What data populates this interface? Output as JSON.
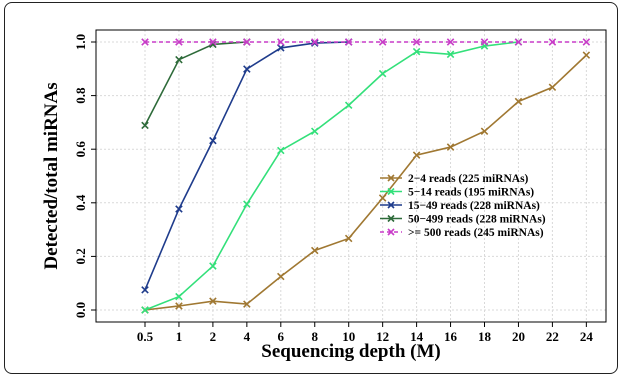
{
  "chart_data": {
    "type": "line",
    "xlabel": "Sequencing depth (M)",
    "ylabel": "Detected/total miRNAs",
    "x_ticks": [
      "0.5",
      "1",
      "2",
      "4",
      "6",
      "8",
      "10",
      "12",
      "14",
      "16",
      "18",
      "20",
      "22",
      "24"
    ],
    "y_ticks": [
      "0.0",
      "0.2",
      "0.4",
      "0.6",
      "0.8",
      "1.0"
    ],
    "ylim": [
      0,
      1
    ],
    "grid": true,
    "legend_position": "center-right",
    "series": [
      {
        "name": "2−4 reads (225 miRNAs)",
        "color": "#a07832",
        "marker": "x",
        "dashed": false,
        "x": [
          "0.5",
          "1",
          "2",
          "4",
          "6",
          "8",
          "10",
          "12",
          "14",
          "16",
          "18",
          "20",
          "22",
          "24"
        ],
        "values": [
          0.0,
          0.015,
          0.033,
          0.022,
          0.125,
          0.222,
          0.267,
          0.418,
          0.578,
          0.608,
          0.667,
          0.778,
          0.831,
          0.951
        ]
      },
      {
        "name": "5−14 reads (195 miRNAs)",
        "color": "#33e07a",
        "marker": "x",
        "dashed": false,
        "x": [
          "0.5",
          "1",
          "2",
          "4",
          "6",
          "8",
          "10",
          "12",
          "14",
          "16",
          "18",
          "20"
        ],
        "values": [
          0.0,
          0.05,
          0.164,
          0.395,
          0.595,
          0.667,
          0.764,
          0.882,
          0.964,
          0.954,
          0.985,
          1.0
        ]
      },
      {
        "name": "15−49 reads (228 miRNAs)",
        "color": "#1f3c8c",
        "marker": "x",
        "dashed": false,
        "x": [
          "0.5",
          "1",
          "2",
          "4",
          "6",
          "8",
          "10"
        ],
        "values": [
          0.075,
          0.377,
          0.632,
          0.899,
          0.978,
          0.996,
          1.0
        ]
      },
      {
        "name": "50−499 reads (228 miRNAs)",
        "color": "#2e6b3a",
        "marker": "x",
        "dashed": false,
        "x": [
          "0.5",
          "1",
          "2",
          "4"
        ],
        "values": [
          0.689,
          0.934,
          0.991,
          1.0
        ]
      },
      {
        "name": ">= 500 reads (245 miRNAs)",
        "color": "#c83cc8",
        "marker": "x",
        "dashed": true,
        "x": [
          "0.5",
          "1",
          "2",
          "4",
          "6",
          "8",
          "10",
          "12",
          "14",
          "16",
          "18",
          "20",
          "22",
          "24"
        ],
        "values": [
          1.0,
          1.0,
          1.0,
          1.0,
          1.0,
          1.0,
          1.0,
          1.0,
          1.0,
          1.0,
          1.0,
          1.0,
          1.0,
          1.0
        ]
      }
    ]
  }
}
